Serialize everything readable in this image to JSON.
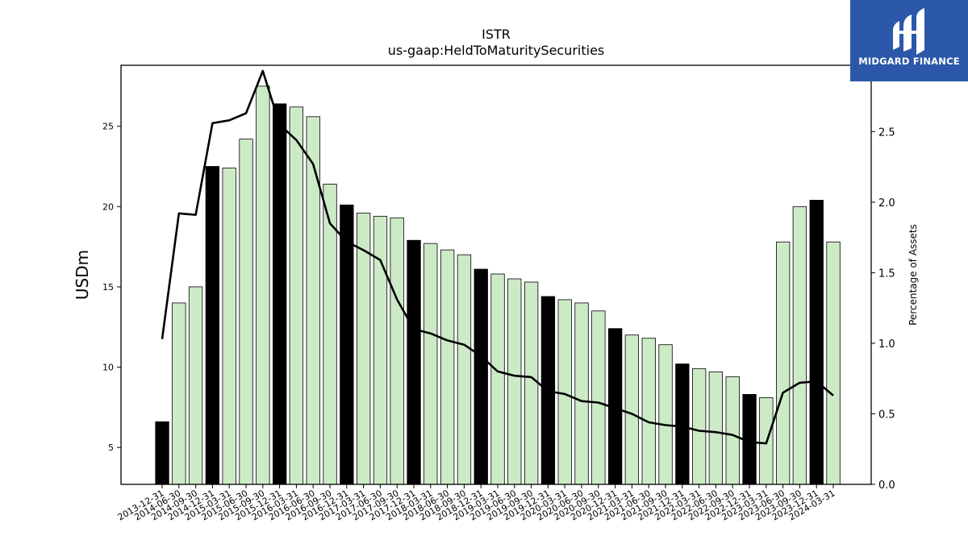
{
  "chart_data": {
    "type": "bar",
    "title": "ISTR",
    "subtitle": "us-gaap:HeldToMaturitySecurities",
    "ylabel": "USDm",
    "y2label": "Percentage of Assets",
    "ylim": [
      2.7,
      28.8
    ],
    "y2lim": [
      0.0,
      2.97
    ],
    "yticks": [
      5,
      10,
      15,
      20,
      25
    ],
    "y2ticks": [
      0.0,
      0.5,
      1.0,
      1.5,
      2.0,
      2.5
    ],
    "bar_color": "#cdeac7",
    "highlight_color": "#000000",
    "line_color": "#000000",
    "categories": [
      "2013-12-31",
      "2014-06-30",
      "2014-09-30",
      "2014-12-31",
      "2015-03-31",
      "2015-06-30",
      "2015-09-30",
      "2015-12-31",
      "2016-03-31",
      "2016-06-30",
      "2016-09-30",
      "2016-12-31",
      "2017-03-31",
      "2017-06-30",
      "2017-09-30",
      "2017-12-31",
      "2018-03-31",
      "2018-06-30",
      "2018-09-30",
      "2018-12-31",
      "2019-03-31",
      "2019-06-30",
      "2019-09-30",
      "2019-12-31",
      "2020-03-31",
      "2020-06-30",
      "2020-09-30",
      "2020-12-31",
      "2021-03-31",
      "2021-06-30",
      "2021-09-30",
      "2021-12-31",
      "2022-03-31",
      "2022-06-30",
      "2022-09-30",
      "2022-12-31",
      "2023-03-31",
      "2023-06-30",
      "2023-09-30",
      "2023-12-31",
      "2024-03-31"
    ],
    "series": [
      {
        "kind": "bar",
        "values": [
          6.6,
          14.0,
          15.0,
          22.5,
          22.4,
          24.2,
          27.5,
          26.4,
          26.2,
          25.6,
          21.4,
          20.1,
          19.6,
          19.4,
          19.3,
          17.9,
          17.7,
          17.3,
          17.0,
          16.1,
          15.8,
          15.5,
          15.3,
          14.4,
          14.2,
          14.0,
          13.5,
          12.4,
          12.0,
          11.8,
          11.4,
          10.2,
          9.9,
          9.7,
          9.4,
          8.3,
          8.1,
          17.8,
          20.0,
          20.4,
          17.8
        ],
        "highlighted": [
          true,
          false,
          false,
          true,
          false,
          false,
          false,
          true,
          false,
          false,
          false,
          true,
          false,
          false,
          false,
          true,
          false,
          false,
          false,
          true,
          false,
          false,
          false,
          true,
          false,
          false,
          false,
          true,
          false,
          false,
          false,
          true,
          false,
          false,
          false,
          true,
          false,
          false,
          false,
          true,
          false
        ]
      },
      {
        "kind": "line",
        "axis": "right",
        "values": [
          1.03,
          1.92,
          1.91,
          2.56,
          2.58,
          2.63,
          2.93,
          2.55,
          2.44,
          2.27,
          1.85,
          1.72,
          1.66,
          1.59,
          1.31,
          1.1,
          1.07,
          1.02,
          0.99,
          0.91,
          0.8,
          0.77,
          0.76,
          0.66,
          0.64,
          0.59,
          0.58,
          0.54,
          0.5,
          0.44,
          0.42,
          0.41,
          0.38,
          0.37,
          0.35,
          0.3,
          0.29,
          0.65,
          0.72,
          0.73,
          0.63
        ]
      }
    ]
  },
  "logo": {
    "text": "MIDGARD FINANCE",
    "icon": "midgard-logo-icon",
    "background": "#2b58a8"
  }
}
